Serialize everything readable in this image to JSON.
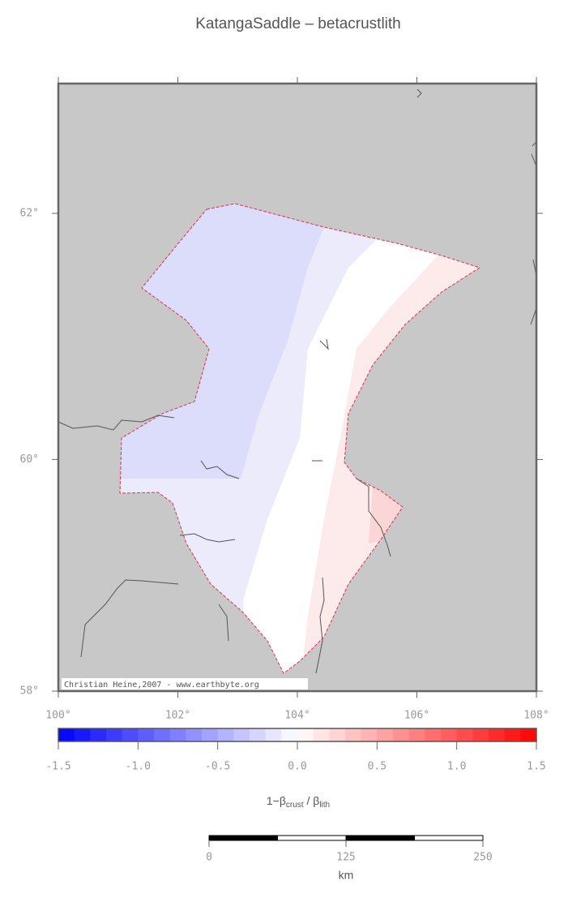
{
  "title": "KatangaSaddle – betacrustlith",
  "map": {
    "lon_ticks": [
      {
        "value": 100,
        "label": "100°"
      },
      {
        "value": 102,
        "label": "102°"
      },
      {
        "value": 104,
        "label": "104°"
      },
      {
        "value": 106,
        "label": "106°"
      },
      {
        "value": 108,
        "label": "108°"
      }
    ],
    "lat_ticks": [
      {
        "value": 58,
        "label": "58°"
      },
      {
        "value": 60,
        "label": "60°"
      },
      {
        "value": 62,
        "label": "62°"
      }
    ],
    "credit": "Christian Heine,2007 - www.earthbyte.org"
  },
  "colorbar": {
    "ticks": [
      {
        "value": -1.5,
        "label": "-1.5"
      },
      {
        "value": -1.0,
        "label": "-1.0"
      },
      {
        "value": -0.5,
        "label": "-0.5"
      },
      {
        "value": 0,
        "label": "0.0"
      },
      {
        "value": 0.5,
        "label": "0.5"
      },
      {
        "value": 1.0,
        "label": "1.0"
      },
      {
        "value": 1.5,
        "label": "1.5"
      }
    ],
    "label": {
      "prefix": "1−β",
      "sub1": "crust",
      "middle": " / β",
      "sub2": "lith"
    }
  },
  "scalebar": {
    "ticks": [
      0,
      125,
      250
    ],
    "unit": "km"
  }
}
